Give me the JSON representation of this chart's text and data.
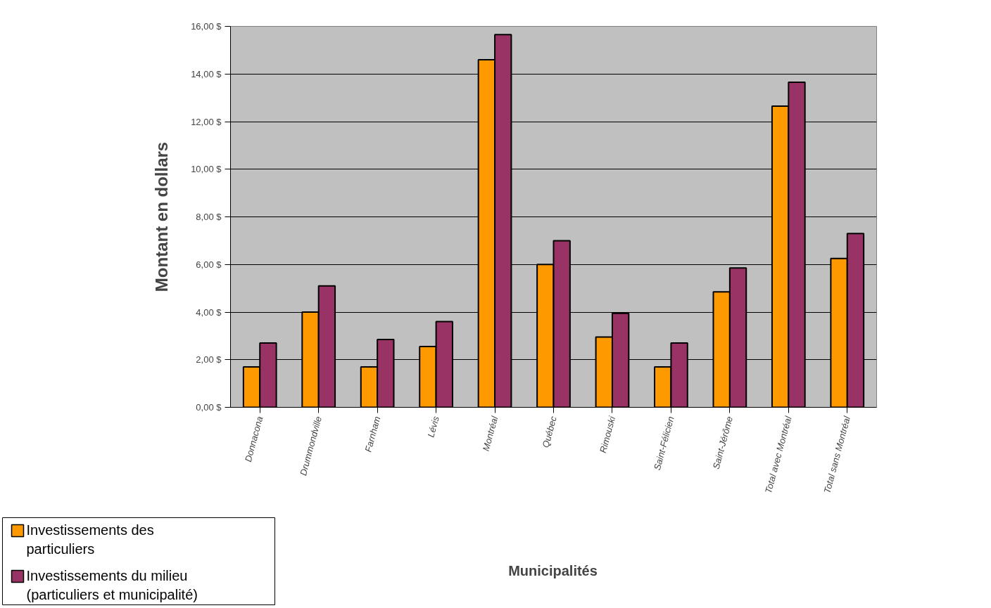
{
  "chart_data": {
    "type": "bar",
    "xlabel": "Municipalités",
    "ylabel": "Montant en dollars",
    "categories": [
      "Donnacona",
      "Drummondville",
      "Farnham",
      "Lévis",
      "Montréal",
      "Québec",
      "Rimouski",
      "Saint-Félicien",
      "Saint-Jérôme",
      "Total avec Montréal",
      "Total sans Montréal"
    ],
    "series": [
      {
        "name": "Investissements des particuliers",
        "color": "#ff9900",
        "values": [
          1.7,
          4.0,
          1.7,
          2.55,
          14.6,
          6.0,
          2.95,
          1.7,
          4.85,
          12.65,
          6.25
        ]
      },
      {
        "name": "Investissements du milieu (particuliers et municipalité)",
        "color": "#993366",
        "values": [
          2.7,
          5.1,
          2.85,
          3.6,
          15.65,
          7.0,
          3.95,
          2.7,
          5.85,
          13.65,
          7.3
        ]
      }
    ],
    "ylim": [
      0,
      16
    ],
    "yticks": [
      {
        "value": 0,
        "label": "0,00 $"
      },
      {
        "value": 2,
        "label": "2,00 $"
      },
      {
        "value": 4,
        "label": "4,00 $"
      },
      {
        "value": 6,
        "label": "6,00 $"
      },
      {
        "value": 8,
        "label": "8,00 $"
      },
      {
        "value": 10,
        "label": "10,00 $"
      },
      {
        "value": 12,
        "label": "12,00 $"
      },
      {
        "value": 14,
        "label": "14,00 $"
      },
      {
        "value": 16,
        "label": "16,00 $"
      }
    ],
    "grid": "y",
    "legend": "bottom left"
  }
}
